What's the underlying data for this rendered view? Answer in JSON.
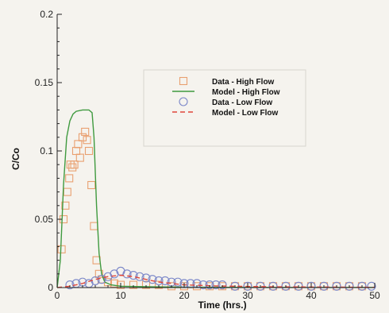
{
  "chart_data": {
    "type": "scatter",
    "xlabel": "Time (hrs.)",
    "ylabel": "C/Co",
    "xlim": [
      0,
      50
    ],
    "ylim": [
      0,
      0.2
    ],
    "xticks": [
      0,
      10,
      20,
      30,
      40,
      50
    ],
    "yticks": [
      0,
      0.05,
      0.1,
      0.15,
      0.2
    ],
    "ytick_labels": [
      "0",
      "0.05",
      "0.1",
      "0.15",
      "0.2"
    ],
    "legend_position": "upper-right",
    "grid": false,
    "series": [
      {
        "name": "Data - High Flow",
        "kind": "markers",
        "marker": "square",
        "color": "#e9a070",
        "points": [
          [
            0.7,
            0.028
          ],
          [
            1.0,
            0.05
          ],
          [
            1.3,
            0.06
          ],
          [
            1.6,
            0.07
          ],
          [
            1.9,
            0.08
          ],
          [
            2.1,
            0.09
          ],
          [
            2.4,
            0.088
          ],
          [
            2.7,
            0.09
          ],
          [
            3.0,
            0.1
          ],
          [
            3.3,
            0.105
          ],
          [
            3.6,
            0.095
          ],
          [
            4.0,
            0.11
          ],
          [
            4.4,
            0.114
          ],
          [
            4.7,
            0.108
          ],
          [
            5.0,
            0.1
          ],
          [
            5.4,
            0.075
          ],
          [
            5.8,
            0.045
          ],
          [
            6.2,
            0.02
          ],
          [
            6.6,
            0.01
          ],
          [
            7.0,
            0.006
          ],
          [
            8,
            0.004
          ],
          [
            9,
            0.003
          ],
          [
            10,
            0.002
          ],
          [
            12,
            0.002
          ],
          [
            14,
            0.002
          ],
          [
            16,
            0.002
          ],
          [
            18,
            0.001
          ],
          [
            20,
            0.001
          ],
          [
            22,
            0.001
          ],
          [
            24,
            0.001
          ],
          [
            26,
            0.001
          ],
          [
            28,
            0.001
          ],
          [
            30,
            0.001
          ],
          [
            32,
            0.001
          ],
          [
            34,
            0.001
          ],
          [
            36,
            0.001
          ],
          [
            38,
            0.001
          ],
          [
            40,
            0.001
          ],
          [
            42,
            0.001
          ],
          [
            44,
            0.001
          ],
          [
            46,
            0.001
          ],
          [
            48,
            0.001
          ]
        ]
      },
      {
        "name": "Model - High Flow",
        "kind": "line",
        "dash": "solid",
        "color": "#3f9a3f",
        "points": [
          [
            0,
            0
          ],
          [
            0.5,
            0.02
          ],
          [
            1.0,
            0.075
          ],
          [
            1.5,
            0.11
          ],
          [
            2.0,
            0.122
          ],
          [
            2.5,
            0.127
          ],
          [
            3.0,
            0.129
          ],
          [
            4.0,
            0.13
          ],
          [
            5.0,
            0.13
          ],
          [
            5.5,
            0.128
          ],
          [
            5.8,
            0.11
          ],
          [
            6.2,
            0.06
          ],
          [
            6.6,
            0.025
          ],
          [
            7.0,
            0.01
          ],
          [
            7.5,
            0.004
          ],
          [
            8.5,
            0.002
          ],
          [
            10,
            0.001
          ],
          [
            15,
            0.0005
          ],
          [
            20,
            0.0003
          ],
          [
            30,
            0.0002
          ],
          [
            40,
            0.0001
          ],
          [
            50,
            0.0001
          ]
        ]
      },
      {
        "name": "Data - Low Flow",
        "kind": "markers",
        "marker": "circle",
        "color": "#7a86c8",
        "points": [
          [
            2,
            0.002
          ],
          [
            3,
            0.003
          ],
          [
            4,
            0.004
          ],
          [
            5,
            0.003
          ],
          [
            6,
            0.005
          ],
          [
            7,
            0.006
          ],
          [
            8,
            0.008
          ],
          [
            9,
            0.01
          ],
          [
            10,
            0.012
          ],
          [
            11,
            0.01
          ],
          [
            12,
            0.009
          ],
          [
            13,
            0.008
          ],
          [
            14,
            0.007
          ],
          [
            15,
            0.006
          ],
          [
            16,
            0.005
          ],
          [
            17,
            0.005
          ],
          [
            18,
            0.004
          ],
          [
            19,
            0.004
          ],
          [
            20,
            0.003
          ],
          [
            21,
            0.003
          ],
          [
            22,
            0.003
          ],
          [
            23,
            0.002
          ],
          [
            24,
            0.002
          ],
          [
            25,
            0.002
          ],
          [
            26,
            0.002
          ],
          [
            28,
            0.001
          ],
          [
            30,
            0.001
          ],
          [
            32,
            0.001
          ],
          [
            34,
            0.001
          ],
          [
            36,
            0.001
          ],
          [
            38,
            0.001
          ],
          [
            40,
            0.001
          ],
          [
            42,
            0.001
          ],
          [
            44,
            0.001
          ],
          [
            46,
            0.001
          ],
          [
            48,
            0.001
          ],
          [
            49.5,
            0.001
          ]
        ]
      },
      {
        "name": "Model - Low Flow",
        "kind": "line",
        "dash": "dashed",
        "color": "#e0463a",
        "points": [
          [
            0,
            0
          ],
          [
            2,
            0.001
          ],
          [
            4,
            0.003
          ],
          [
            6,
            0.006
          ],
          [
            8,
            0.008
          ],
          [
            10,
            0.009
          ],
          [
            12,
            0.008
          ],
          [
            14,
            0.006
          ],
          [
            16,
            0.004
          ],
          [
            18,
            0.003
          ],
          [
            20,
            0.002
          ],
          [
            25,
            0.0012
          ],
          [
            30,
            0.0008
          ],
          [
            35,
            0.0005
          ],
          [
            40,
            0.0004
          ],
          [
            45,
            0.0003
          ],
          [
            50,
            0.0002
          ]
        ]
      }
    ]
  }
}
